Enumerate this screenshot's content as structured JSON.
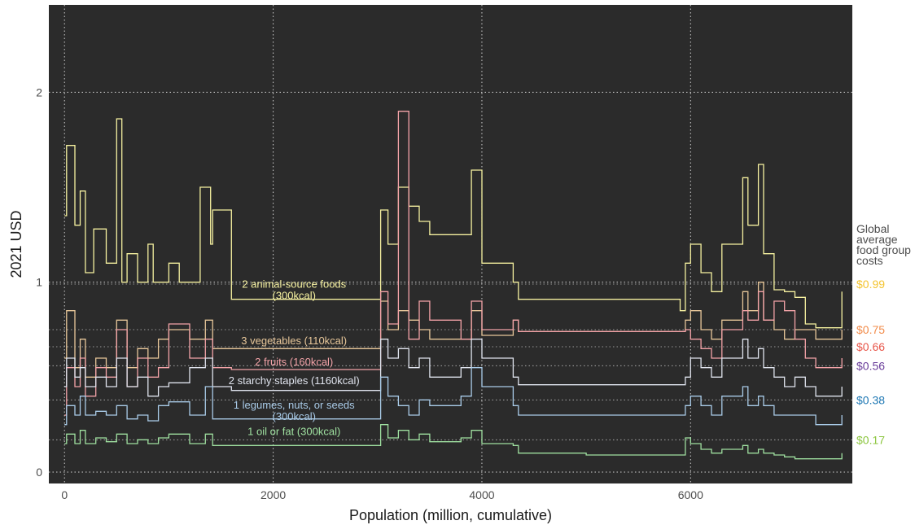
{
  "chart_data": {
    "type": "line",
    "xlabel": "Population (million, cumulative)",
    "ylabel": "2021 USD",
    "xlim": [
      -150,
      7550
    ],
    "ylim": [
      -0.06,
      2.46
    ],
    "x_ticks": [
      0,
      2000,
      4000,
      6000
    ],
    "x_tick_labels": [
      "0",
      "2000",
      "4000",
      "6000"
    ],
    "y_ticks": [
      0,
      1,
      2
    ],
    "y_tick_labels": [
      "0",
      "1",
      "2"
    ],
    "background": "#2b2b2b",
    "grid": "dotted",
    "legend_title": "Global\naverage\nfood group\ncosts",
    "series": [
      {
        "label_line1": "2 animal-source foods",
        "label_line2": "(300kcal)",
        "label_at": [
          2200,
          0.97
        ],
        "color": "#f6f1a0",
        "average_label": "$0.99",
        "average_color": "#f4c430",
        "x": [
          0,
          20,
          100,
          150,
          200,
          280,
          400,
          500,
          550,
          600,
          700,
          800,
          850,
          1000,
          1100,
          1300,
          1400,
          1420,
          1600,
          2500,
          3000,
          3030,
          3100,
          3200,
          3300,
          3400,
          3500,
          3800,
          3900,
          4000,
          4300,
          4350,
          5000,
          5800,
          5900,
          5950,
          6000,
          6100,
          6200,
          6300,
          6500,
          6550,
          6650,
          6700,
          6800,
          6900,
          7000,
          7100,
          7200,
          7300,
          7450
        ],
        "y": [
          1.35,
          1.72,
          1.3,
          1.48,
          1.05,
          1.28,
          1.1,
          1.86,
          1.0,
          1.15,
          1.0,
          1.2,
          1.0,
          1.1,
          1.0,
          1.5,
          1.2,
          1.38,
          0.91,
          0.91,
          0.91,
          1.38,
          1.2,
          1.5,
          1.4,
          1.32,
          1.25,
          1.25,
          1.59,
          1.1,
          1.0,
          0.91,
          0.91,
          0.91,
          0.85,
          1.1,
          1.2,
          1.05,
          0.95,
          1.2,
          1.55,
          1.3,
          1.62,
          1.15,
          0.96,
          0.95,
          0.92,
          0.78,
          0.76,
          0.76,
          0.95
        ]
      },
      {
        "label_line1": "3 vegetables (110kcal)",
        "label_line2": "",
        "label_at": [
          2200,
          0.672
        ],
        "color": "#e8c79a",
        "average_label": "$0.75",
        "average_color": "#f28c4b",
        "x": [
          0,
          20,
          100,
          150,
          200,
          300,
          400,
          500,
          600,
          700,
          800,
          900,
          1000,
          1200,
          1350,
          1420,
          1600,
          2500,
          3000,
          3030,
          3100,
          3200,
          3300,
          3400,
          3500,
          3800,
          3900,
          4000,
          4300,
          4350,
          5000,
          5800,
          5900,
          5950,
          6000,
          6100,
          6200,
          6300,
          6500,
          6550,
          6650,
          6700,
          6800,
          6900,
          7000,
          7100,
          7200,
          7300,
          7450
        ],
        "y": [
          0.6,
          0.85,
          0.55,
          0.7,
          0.5,
          0.6,
          0.55,
          0.8,
          0.55,
          0.65,
          0.6,
          0.7,
          0.75,
          0.7,
          0.8,
          0.65,
          0.65,
          0.65,
          0.65,
          0.9,
          0.75,
          0.85,
          0.8,
          0.75,
          0.7,
          0.7,
          0.85,
          0.72,
          0.8,
          0.74,
          0.74,
          0.74,
          0.74,
          0.8,
          0.85,
          0.75,
          0.7,
          0.8,
          0.95,
          0.85,
          1.0,
          0.8,
          0.75,
          0.7,
          0.75,
          0.75,
          0.7,
          0.7,
          0.75
        ]
      },
      {
        "label_line1": "2 fruits (160kcal)",
        "label_line2": "",
        "label_at": [
          2200,
          0.562
        ],
        "color": "#f4a3a8",
        "average_label": "$0.66",
        "average_color": "#e8564a",
        "x": [
          0,
          20,
          100,
          150,
          200,
          300,
          400,
          500,
          600,
          700,
          800,
          900,
          1000,
          1200,
          1350,
          1420,
          1600,
          2500,
          3000,
          3030,
          3100,
          3200,
          3300,
          3400,
          3500,
          3800,
          3900,
          4000,
          4300,
          4350,
          5000,
          5800,
          5900,
          5950,
          6000,
          6100,
          6200,
          6300,
          6500,
          6550,
          6650,
          6700,
          6800,
          6900,
          7000,
          7100,
          7200,
          7300,
          7450
        ],
        "y": [
          0.3,
          0.55,
          0.45,
          0.6,
          0.4,
          0.55,
          0.5,
          0.75,
          0.45,
          0.6,
          0.5,
          0.55,
          0.78,
          0.6,
          0.7,
          0.55,
          0.54,
          0.54,
          0.54,
          0.95,
          0.78,
          1.9,
          0.7,
          0.9,
          0.8,
          0.7,
          0.9,
          0.75,
          0.8,
          0.74,
          0.74,
          0.74,
          0.74,
          0.75,
          0.7,
          0.65,
          0.6,
          0.75,
          0.85,
          0.8,
          0.95,
          0.8,
          0.9,
          0.85,
          0.7,
          0.6,
          0.55,
          0.55,
          0.6
        ]
      },
      {
        "label_line1": "2 starchy staples (1160kcal)",
        "label_line2": "",
        "label_at": [
          2200,
          0.463
        ],
        "color": "#e0e4ee",
        "average_label": "$0.56",
        "average_color": "#6a3d9a",
        "x": [
          0,
          20,
          100,
          150,
          200,
          300,
          400,
          500,
          600,
          700,
          800,
          900,
          1000,
          1200,
          1350,
          1420,
          1600,
          2500,
          3000,
          3030,
          3100,
          3200,
          3300,
          3400,
          3500,
          3800,
          3900,
          4000,
          4300,
          4350,
          5000,
          5800,
          5900,
          5950,
          6000,
          6100,
          6200,
          6300,
          6500,
          6550,
          6650,
          6700,
          6800,
          6900,
          7000,
          7100,
          7200,
          7300,
          7450
        ],
        "y": [
          0.45,
          0.6,
          0.5,
          0.55,
          0.45,
          0.5,
          0.45,
          0.6,
          0.45,
          0.5,
          0.4,
          0.45,
          0.47,
          0.55,
          0.6,
          0.45,
          0.43,
          0.43,
          0.43,
          0.7,
          0.6,
          0.65,
          0.55,
          0.6,
          0.5,
          0.55,
          0.7,
          0.6,
          0.5,
          0.46,
          0.46,
          0.46,
          0.46,
          0.5,
          0.6,
          0.55,
          0.5,
          0.6,
          0.7,
          0.6,
          0.65,
          0.55,
          0.5,
          0.45,
          0.5,
          0.45,
          0.4,
          0.4,
          0.45
        ]
      },
      {
        "label_line1": "1 legumes, nuts, or seeds",
        "label_line2": "(300kcal)",
        "label_at": [
          2200,
          0.335
        ],
        "color": "#a9cbe8",
        "average_label": "$0.38",
        "average_color": "#1f78b4",
        "x": [
          0,
          20,
          100,
          150,
          200,
          300,
          400,
          500,
          600,
          700,
          800,
          900,
          1000,
          1200,
          1350,
          1420,
          1600,
          2500,
          3000,
          3030,
          3100,
          3200,
          3300,
          3400,
          3500,
          3800,
          3900,
          4000,
          4300,
          4350,
          5000,
          5800,
          5900,
          5950,
          6000,
          6100,
          6200,
          6300,
          6500,
          6550,
          6650,
          6700,
          6800,
          6900,
          7000,
          7100,
          7200,
          7300,
          7450
        ],
        "y": [
          0.25,
          0.35,
          0.3,
          0.4,
          0.3,
          0.32,
          0.3,
          0.35,
          0.28,
          0.3,
          0.27,
          0.35,
          0.37,
          0.3,
          0.45,
          0.28,
          0.28,
          0.28,
          0.28,
          0.5,
          0.4,
          0.35,
          0.3,
          0.38,
          0.35,
          0.4,
          0.55,
          0.45,
          0.35,
          0.3,
          0.3,
          0.3,
          0.3,
          0.35,
          0.4,
          0.35,
          0.3,
          0.4,
          0.45,
          0.35,
          0.4,
          0.35,
          0.3,
          0.3,
          0.3,
          0.3,
          0.25,
          0.25,
          0.3
        ]
      },
      {
        "label_line1": "1 oil or fat (300kcal)",
        "label_line2": "",
        "label_at": [
          2200,
          0.195
        ],
        "color": "#9fe0a0",
        "average_label": "$0.17",
        "average_color": "#8cc63f",
        "x": [
          0,
          20,
          100,
          150,
          200,
          300,
          400,
          500,
          600,
          700,
          800,
          900,
          1000,
          1200,
          1350,
          1420,
          1600,
          2500,
          3000,
          3030,
          3100,
          3200,
          3300,
          3400,
          3500,
          3800,
          3900,
          4000,
          4300,
          4350,
          5000,
          5800,
          5900,
          5950,
          6000,
          6100,
          6200,
          6300,
          6500,
          6550,
          6650,
          6700,
          6800,
          6900,
          7000,
          7100,
          7200,
          7300,
          7450
        ],
        "y": [
          0.15,
          0.2,
          0.15,
          0.22,
          0.15,
          0.18,
          0.16,
          0.2,
          0.15,
          0.17,
          0.15,
          0.18,
          0.2,
          0.15,
          0.2,
          0.14,
          0.14,
          0.14,
          0.14,
          0.25,
          0.18,
          0.22,
          0.17,
          0.2,
          0.16,
          0.18,
          0.22,
          0.15,
          0.14,
          0.1,
          0.09,
          0.09,
          0.09,
          0.18,
          0.15,
          0.12,
          0.1,
          0.12,
          0.14,
          0.1,
          0.12,
          0.1,
          0.09,
          0.08,
          0.07,
          0.07,
          0.07,
          0.07,
          0.1
        ]
      }
    ]
  }
}
